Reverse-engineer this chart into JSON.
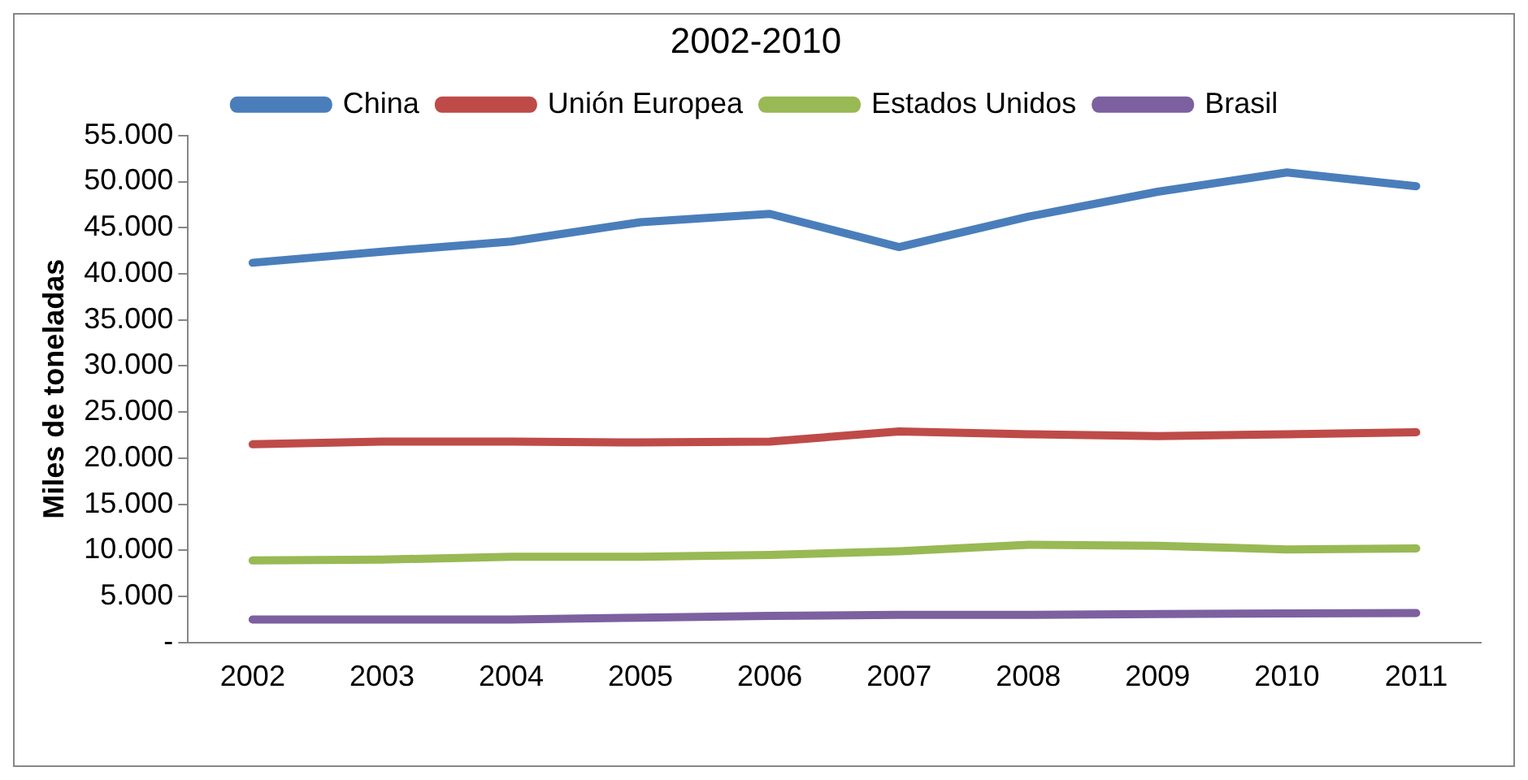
{
  "chart_data": {
    "type": "line",
    "title": "2002-2010",
    "ylabel": "Miles de toneladas",
    "categories": [
      "2002",
      "2003",
      "2004",
      "2005",
      "2006",
      "2007",
      "2008",
      "2009",
      "2010",
      "2011"
    ],
    "series": [
      {
        "name": "China",
        "color": "#4a7ebb",
        "values": [
          41200,
          42400,
          43500,
          45600,
          46500,
          42900,
          46200,
          48900,
          51000,
          49500
        ]
      },
      {
        "name": "Unión Europea",
        "color": "#be4b48",
        "values": [
          21500,
          21800,
          21800,
          21700,
          21800,
          22900,
          22600,
          22400,
          22600,
          22800
        ]
      },
      {
        "name": "Estados Unidos",
        "color": "#98b954",
        "values": [
          8900,
          9000,
          9300,
          9300,
          9500,
          9900,
          10600,
          10500,
          10100,
          10200
        ]
      },
      {
        "name": "Brasil",
        "color": "#7d60a0",
        "values": [
          2500,
          2500,
          2500,
          2700,
          2900,
          3000,
          3000,
          3100,
          3150,
          3200
        ]
      }
    ],
    "ylim": [
      0,
      55000
    ],
    "yticks": [
      {
        "value": 0,
        "label": "-"
      },
      {
        "value": 5000,
        "label": "5.000"
      },
      {
        "value": 10000,
        "label": "10.000"
      },
      {
        "value": 15000,
        "label": "15.000"
      },
      {
        "value": 20000,
        "label": "20.000"
      },
      {
        "value": 25000,
        "label": "25.000"
      },
      {
        "value": 30000,
        "label": "30.000"
      },
      {
        "value": 35000,
        "label": "35.000"
      },
      {
        "value": 40000,
        "label": "40.000"
      },
      {
        "value": 45000,
        "label": "45.000"
      },
      {
        "value": 50000,
        "label": "50.000"
      },
      {
        "value": 55000,
        "label": "55.000"
      }
    ],
    "grid": false,
    "legend": "top",
    "marker": "none",
    "line_style": "solid"
  }
}
